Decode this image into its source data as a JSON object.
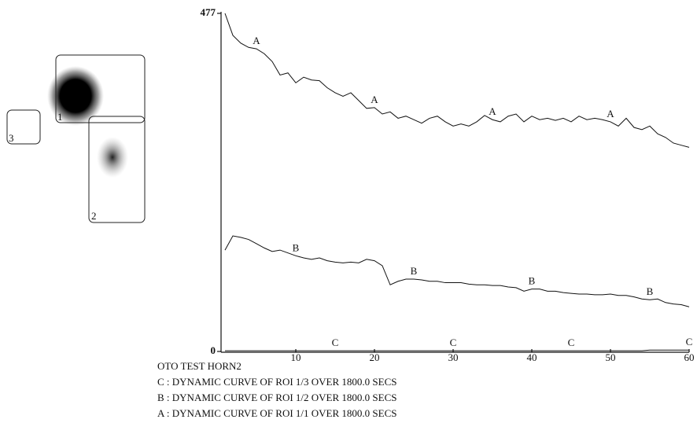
{
  "chart_data": {
    "type": "line",
    "title": "OTO TEST HORN2",
    "x": [
      1,
      2,
      3,
      4,
      5,
      6,
      7,
      8,
      9,
      10,
      11,
      12,
      13,
      14,
      15,
      16,
      17,
      18,
      19,
      20,
      21,
      22,
      23,
      24,
      25,
      26,
      27,
      28,
      29,
      30,
      31,
      32,
      33,
      34,
      35,
      36,
      37,
      38,
      39,
      40,
      41,
      42,
      43,
      44,
      45,
      46,
      47,
      48,
      49,
      50,
      51,
      52,
      53,
      54,
      55,
      56,
      57,
      58,
      59,
      60
    ],
    "xlim": [
      0,
      60
    ],
    "xticks": [
      10,
      20,
      30,
      40,
      50,
      60
    ],
    "ylim": [
      0,
      477
    ],
    "yticks": [
      0,
      477
    ],
    "series": [
      {
        "name": "C",
        "description": "C : DYNAMIC CURVE OF ROI 1/3 OVER 1800.0 SECS",
        "color": "#111111",
        "label_at": [
          15,
          30,
          45,
          60
        ],
        "values": [
          1,
          1,
          1,
          1,
          1,
          1,
          1,
          1,
          1,
          1,
          1,
          1,
          1,
          1,
          1,
          1,
          1,
          1,
          1,
          1,
          1,
          1,
          1,
          1,
          1,
          1,
          1,
          1,
          1,
          1,
          1,
          1,
          1,
          1,
          1,
          1,
          1,
          1,
          1,
          1,
          1,
          1,
          1,
          1,
          1,
          1,
          1,
          1,
          1,
          1,
          1,
          1,
          1,
          1,
          2,
          2,
          2,
          2,
          2,
          2
        ]
      },
      {
        "name": "B",
        "description": "B : DYNAMIC CURVE OF ROI 1/2 OVER 1800.0 SECS",
        "color": "#111111",
        "label_at": [
          10,
          25,
          40,
          55
        ],
        "values": [
          143,
          163,
          161,
          158,
          152,
          146,
          141,
          143,
          139,
          135,
          132,
          130,
          132,
          128,
          126,
          125,
          126,
          125,
          130,
          128,
          121,
          94,
          99,
          102,
          102,
          101,
          99,
          99,
          97,
          97,
          97,
          95,
          94,
          94,
          93,
          93,
          91,
          90,
          85,
          88,
          88,
          85,
          85,
          83,
          82,
          81,
          81,
          80,
          80,
          81,
          79,
          79,
          77,
          74,
          73,
          74,
          69,
          67,
          66,
          63
        ]
      },
      {
        "name": "A",
        "description": "A : DYNAMIC CURVE OF ROI 1/1 OVER 1800.0 SECS",
        "color": "#111111",
        "label_at": [
          5,
          20,
          35,
          50
        ],
        "values": [
          477,
          446,
          435,
          429,
          427,
          420,
          409,
          390,
          393,
          379,
          387,
          383,
          382,
          372,
          365,
          360,
          365,
          354,
          343,
          344,
          335,
          338,
          329,
          332,
          327,
          322,
          329,
          332,
          324,
          318,
          321,
          318,
          324,
          333,
          327,
          324,
          332,
          335,
          324,
          332,
          327,
          329,
          326,
          329,
          324,
          332,
          327,
          329,
          327,
          324,
          318,
          329,
          316,
          313,
          318,
          307,
          302,
          294,
          291,
          288
        ]
      }
    ]
  },
  "roi_image": {
    "labels": [
      "1",
      "2",
      "3"
    ]
  }
}
